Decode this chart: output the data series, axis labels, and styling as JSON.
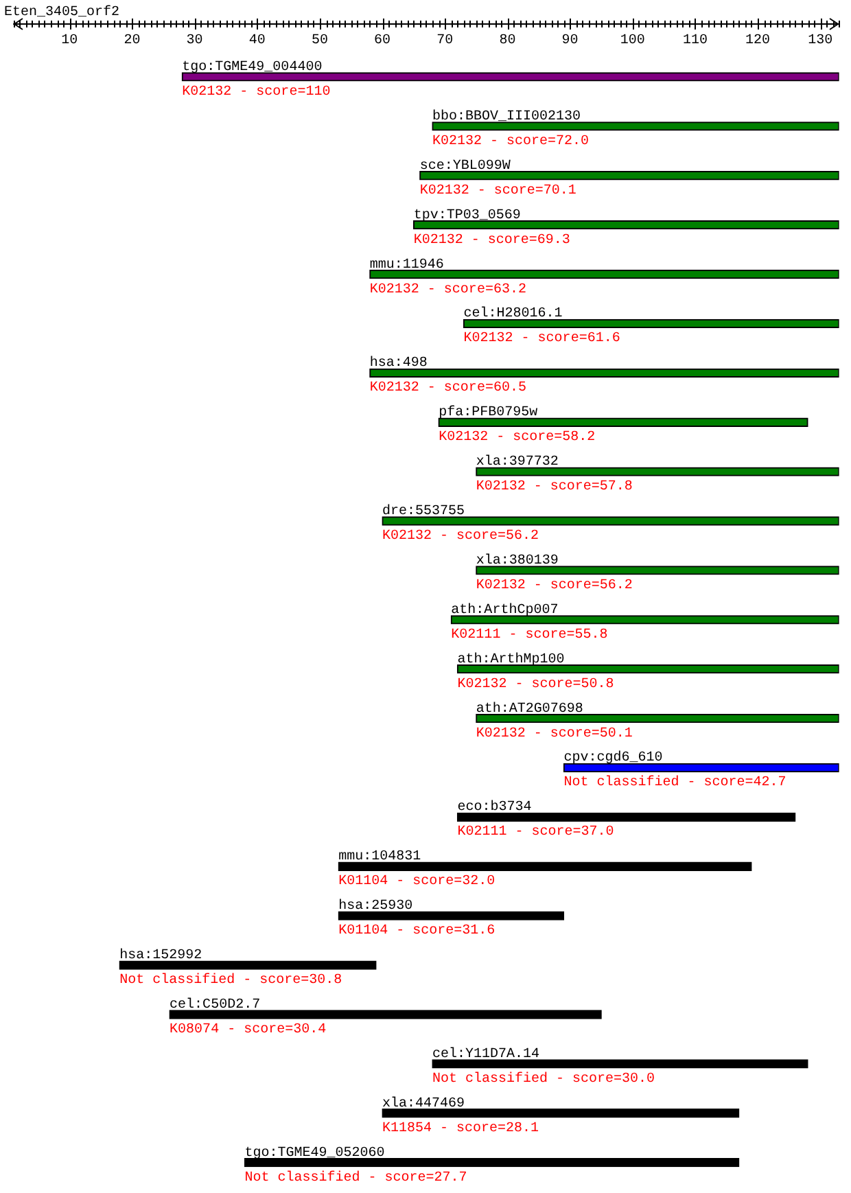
{
  "chart_data": {
    "type": "bar",
    "orientation": "horizontal",
    "title": "Eten_3405_orf2",
    "categories": [
      "tgo:TGME49_004400",
      "bbo:BBOV_III002130",
      "sce:YBL099W",
      "tpv:TP03_0569",
      "mmu:11946",
      "cel:H28016.1",
      "hsa:498",
      "pfa:PFB0795w",
      "xla:397732",
      "dre:553755",
      "xla:380139",
      "ath:ArthCp007",
      "ath:ArthMp100",
      "ath:AT2G07698",
      "cpv:cgd6_610",
      "eco:b3734",
      "mmu:104831",
      "hsa:25930",
      "hsa:152992",
      "cel:C50D2.7",
      "cel:Y11D7A.14",
      "xla:447469",
      "tgo:TGME49_052060"
    ],
    "base": [
      28,
      68,
      66,
      65,
      58,
      73,
      58,
      69,
      75,
      60,
      75,
      71,
      72,
      75,
      89,
      72,
      53,
      53,
      18,
      26,
      68,
      60,
      38
    ],
    "values": [
      105,
      65,
      67,
      68,
      75,
      60,
      75,
      59,
      58,
      73,
      58,
      62,
      61,
      58,
      44,
      54,
      66,
      36,
      41,
      69,
      60,
      57,
      79
    ],
    "colors": [
      "#800080",
      "#008000",
      "#008000",
      "#008000",
      "#008000",
      "#008000",
      "#008000",
      "#008000",
      "#008000",
      "#008000",
      "#008000",
      "#008000",
      "#008000",
      "#008000",
      "#0000ff",
      "#000000",
      "#000000",
      "#000000",
      "#000000",
      "#000000",
      "#000000",
      "#000000",
      "#000000"
    ],
    "xlim": [
      1,
      133
    ],
    "xticks": [
      {
        "value": 1,
        "label": null
      },
      {
        "value": 2,
        "label": null
      },
      {
        "value": 3,
        "label": null
      },
      {
        "value": 4,
        "label": null
      },
      {
        "value": 5,
        "label": null
      },
      {
        "value": 6,
        "label": null
      },
      {
        "value": 7,
        "label": null
      },
      {
        "value": 8,
        "label": null
      },
      {
        "value": 9,
        "label": null
      },
      10,
      {
        "value": 11,
        "label": null
      },
      {
        "value": 12,
        "label": null
      },
      {
        "value": 13,
        "label": null
      },
      {
        "value": 14,
        "label": null
      },
      {
        "value": 15,
        "label": null
      },
      {
        "value": 16,
        "label": null
      },
      {
        "value": 17,
        "label": null
      },
      {
        "value": 18,
        "label": null
      },
      {
        "value": 19,
        "label": null
      },
      20,
      {
        "value": 21,
        "label": null
      },
      {
        "value": 22,
        "label": null
      },
      {
        "value": 23,
        "label": null
      },
      {
        "value": 24,
        "label": null
      },
      {
        "value": 25,
        "label": null
      },
      {
        "value": 26,
        "label": null
      },
      {
        "value": 27,
        "label": null
      },
      {
        "value": 28,
        "label": null
      },
      {
        "value": 29,
        "label": null
      },
      30,
      {
        "value": 31,
        "label": null
      },
      {
        "value": 32,
        "label": null
      },
      {
        "value": 33,
        "label": null
      },
      {
        "value": 34,
        "label": null
      },
      {
        "value": 35,
        "label": null
      },
      {
        "value": 36,
        "label": null
      },
      {
        "value": 37,
        "label": null
      },
      {
        "value": 38,
        "label": null
      },
      {
        "value": 39,
        "label": null
      },
      40,
      {
        "value": 41,
        "label": null
      },
      {
        "value": 42,
        "label": null
      },
      {
        "value": 43,
        "label": null
      },
      {
        "value": 44,
        "label": null
      },
      {
        "value": 45,
        "label": null
      },
      {
        "value": 46,
        "label": null
      },
      {
        "value": 47,
        "label": null
      },
      {
        "value": 48,
        "label": null
      },
      {
        "value": 49,
        "label": null
      },
      50,
      {
        "value": 51,
        "label": null
      },
      {
        "value": 52,
        "label": null
      },
      {
        "value": 53,
        "label": null
      },
      {
        "value": 54,
        "label": null
      },
      {
        "value": 55,
        "label": null
      },
      {
        "value": 56,
        "label": null
      },
      {
        "value": 57,
        "label": null
      },
      {
        "value": 58,
        "label": null
      },
      {
        "value": 59,
        "label": null
      },
      60,
      {
        "value": 61,
        "label": null
      },
      {
        "value": 62,
        "label": null
      },
      {
        "value": 63,
        "label": null
      },
      {
        "value": 64,
        "label": null
      },
      {
        "value": 65,
        "label": null
      },
      {
        "value": 66,
        "label": null
      },
      {
        "value": 67,
        "label": null
      },
      {
        "value": 68,
        "label": null
      },
      {
        "value": 69,
        "label": null
      },
      70,
      {
        "value": 71,
        "label": null
      },
      {
        "value": 72,
        "label": null
      },
      {
        "value": 73,
        "label": null
      },
      {
        "value": 74,
        "label": null
      },
      {
        "value": 75,
        "label": null
      },
      {
        "value": 76,
        "label": null
      },
      {
        "value": 77,
        "label": null
      },
      {
        "value": 78,
        "label": null
      },
      {
        "value": 79,
        "label": null
      },
      80,
      {
        "value": 81,
        "label": null
      },
      {
        "value": 82,
        "label": null
      },
      {
        "value": 83,
        "label": null
      },
      {
        "value": 84,
        "label": null
      },
      {
        "value": 85,
        "label": null
      },
      {
        "value": 86,
        "label": null
      },
      {
        "value": 87,
        "label": null
      },
      {
        "value": 88,
        "label": null
      },
      {
        "value": 89,
        "label": null
      },
      90,
      {
        "value": 91,
        "label": null
      },
      {
        "value": 92,
        "label": null
      },
      {
        "value": 93,
        "label": null
      },
      {
        "value": 94,
        "label": null
      },
      {
        "value": 95,
        "label": null
      },
      {
        "value": 96,
        "label": null
      },
      {
        "value": 97,
        "label": null
      },
      {
        "value": 98,
        "label": null
      },
      {
        "value": 99,
        "label": null
      },
      100,
      {
        "value": 101,
        "label": null
      },
      {
        "value": 102,
        "label": null
      },
      {
        "value": 103,
        "label": null
      },
      {
        "value": 104,
        "label": null
      },
      {
        "value": 105,
        "label": null
      },
      {
        "value": 106,
        "label": null
      },
      {
        "value": 107,
        "label": null
      },
      {
        "value": 108,
        "label": null
      },
      {
        "value": 109,
        "label": null
      },
      110,
      {
        "value": 111,
        "label": null
      },
      {
        "value": 112,
        "label": null
      },
      {
        "value": 113,
        "label": null
      },
      {
        "value": 114,
        "label": null
      },
      {
        "value": 115,
        "label": null
      },
      {
        "value": 116,
        "label": null
      },
      {
        "value": 117,
        "label": null
      },
      {
        "value": 118,
        "label": null
      },
      {
        "value": 119,
        "label": null
      },
      120,
      {
        "value": 121,
        "label": null
      },
      {
        "value": 122,
        "label": null
      },
      {
        "value": 123,
        "label": null
      },
      {
        "value": 124,
        "label": null
      },
      {
        "value": 125,
        "label": null
      },
      {
        "value": 126,
        "label": null
      },
      {
        "value": 127,
        "label": null
      },
      {
        "value": 128,
        "label": null
      },
      {
        "value": 129,
        "label": null
      },
      130,
      {
        "value": 131,
        "label": null
      },
      {
        "value": 132,
        "label": null
      },
      {
        "value": 133,
        "label": null
      }
    ],
    "annotations": [
      {
        "text": "K02132 - score=110",
        "x": 28,
        "y": "tgo:TGME49_004400"
      },
      {
        "text": "K02132 - score=72.0",
        "x": 68,
        "y": "bbo:BBOV_III002130"
      },
      {
        "text": "K02132 - score=70.1",
        "x": 66,
        "y": "sce:YBL099W"
      },
      {
        "text": "K02132 - score=69.3",
        "x": 65,
        "y": "tpv:TP03_0569"
      },
      {
        "text": "K02132 - score=63.2",
        "x": 58,
        "y": "mmu:11946"
      },
      {
        "text": "K02132 - score=61.6",
        "x": 73,
        "y": "cel:H28016.1"
      },
      {
        "text": "K02132 - score=60.5",
        "x": 58,
        "y": "hsa:498"
      },
      {
        "text": "K02132 - score=58.2",
        "x": 69,
        "y": "pfa:PFB0795w"
      },
      {
        "text": "K02132 - score=57.8",
        "x": 75,
        "y": "xla:397732"
      },
      {
        "text": "K02132 - score=56.2",
        "x": 60,
        "y": "dre:553755"
      },
      {
        "text": "K02132 - score=56.2",
        "x": 75,
        "y": "xla:380139"
      },
      {
        "text": "K02111 - score=55.8",
        "x": 71,
        "y": "ath:ArthCp007"
      },
      {
        "text": "K02132 - score=50.8",
        "x": 72,
        "y": "ath:ArthMp100"
      },
      {
        "text": "K02132 - score=50.1",
        "x": 75,
        "y": "ath:AT2G07698"
      },
      {
        "text": "Not classified - score=42.7",
        "x": 89,
        "y": "cpv:cgd6_610"
      },
      {
        "text": "K02111 - score=37.0",
        "x": 72,
        "y": "eco:b3734"
      },
      {
        "text": "K01104 - score=32.0",
        "x": 53,
        "y": "mmu:104831"
      },
      {
        "text": "K01104 - score=31.6",
        "x": 53,
        "y": "hsa:25930"
      },
      {
        "text": "Not classified - score=30.8",
        "x": 18,
        "y": "hsa:152992"
      },
      {
        "text": "K08074 - score=30.4",
        "x": 26,
        "y": "cel:C50D2.7"
      },
      {
        "text": "Not classified - score=30.0",
        "x": 68,
        "y": "cel:Y11D7A.14"
      },
      {
        "text": "K11854 - score=28.1",
        "x": 60,
        "y": "xla:447469"
      },
      {
        "text": "Not classified - score=27.7",
        "x": 38,
        "y": "tgo:TGME49_052060"
      }
    ]
  }
}
